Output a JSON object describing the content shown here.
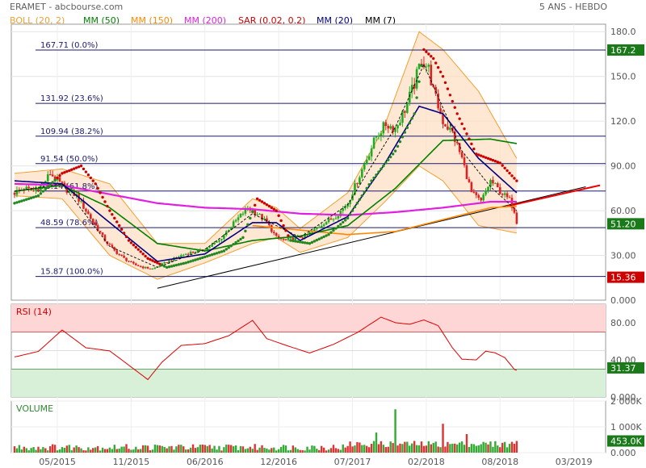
{
  "header": {
    "title": "ERAMET - abcbourse.com",
    "period": "5 ANS - HEBDO"
  },
  "legend": [
    {
      "label": "BOLL (20, 2)",
      "color": "#f0a030"
    },
    {
      "label": "MM (50)",
      "color": "#008000"
    },
    {
      "label": "MM (150)",
      "color": "#ff8800"
    },
    {
      "label": "MM (200)",
      "color": "#e020e0"
    },
    {
      "label": "SAR (0.02, 0.2)",
      "color": "#cc0000"
    },
    {
      "label": "MM (20)",
      "color": "#000080"
    },
    {
      "label": "MM (7)",
      "color": "#000000"
    }
  ],
  "chart_data": [
    {
      "type": "candlestick",
      "title": "",
      "ylim": [
        0,
        185
      ],
      "y_ticks": [
        "180.0",
        "150.0",
        "120.0",
        "90.00",
        "60.00",
        "30.00",
        "0.000"
      ],
      "x_ticks": [
        "05/2015",
        "11/2015",
        "06/2016",
        "12/2016",
        "07/2017",
        "02/2018",
        "08/2018",
        "03/2019"
      ],
      "last_close": 51.2,
      "last_close_label": "51.20",
      "high_label": "167.2",
      "low_label": "15.36",
      "fibonacci": [
        {
          "label": "167.71  (0.0%)",
          "value": 167.71
        },
        {
          "label": "131.92  (23.6%)",
          "value": 131.92
        },
        {
          "label": "109.94  (38.2%)",
          "value": 109.94
        },
        {
          "label": "91.54  (50.0%)",
          "value": 91.54
        },
        {
          "label": "73.14  (61.8%)",
          "value": 73.14
        },
        {
          "label": "48.59  (78.6%)",
          "value": 48.59
        },
        {
          "label": "15.87  (100.0%)",
          "value": 15.87
        }
      ],
      "price_anchors": [
        [
          0,
          72
        ],
        [
          4,
          75
        ],
        [
          8,
          73
        ],
        [
          12,
          78
        ],
        [
          15,
          85
        ],
        [
          18,
          80
        ],
        [
          22,
          74
        ],
        [
          26,
          70
        ],
        [
          30,
          60
        ],
        [
          34,
          50
        ],
        [
          38,
          40
        ],
        [
          42,
          33
        ],
        [
          46,
          28
        ],
        [
          50,
          24
        ],
        [
          54,
          22
        ],
        [
          58,
          21
        ],
        [
          62,
          24
        ],
        [
          66,
          27
        ],
        [
          70,
          30
        ],
        [
          74,
          32
        ],
        [
          78,
          33
        ],
        [
          82,
          36
        ],
        [
          86,
          40
        ],
        [
          90,
          48
        ],
        [
          94,
          55
        ],
        [
          98,
          62
        ],
        [
          102,
          58
        ],
        [
          106,
          52
        ],
        [
          110,
          42
        ],
        [
          114,
          40
        ],
        [
          118,
          42
        ],
        [
          122,
          43
        ],
        [
          126,
          47
        ],
        [
          130,
          52
        ],
        [
          134,
          55
        ],
        [
          136,
          58
        ],
        [
          140,
          65
        ],
        [
          144,
          80
        ],
        [
          148,
          95
        ],
        [
          152,
          110
        ],
        [
          156,
          118
        ],
        [
          160,
          115
        ],
        [
          164,
          128
        ],
        [
          168,
          145
        ],
        [
          171,
          162
        ],
        [
          174,
          155
        ],
        [
          176,
          140
        ],
        [
          180,
          120
        ],
        [
          184,
          112
        ],
        [
          188,
          95
        ],
        [
          192,
          72
        ],
        [
          196,
          66
        ],
        [
          200,
          80
        ],
        [
          204,
          73
        ],
        [
          208,
          67
        ],
        [
          210,
          60
        ],
        [
          211,
          51
        ]
      ],
      "sar_anchors": [
        [
          0,
          65
        ],
        [
          10,
          70
        ],
        [
          20,
          85
        ],
        [
          28,
          90
        ],
        [
          34,
          78
        ],
        [
          40,
          60
        ],
        [
          48,
          40
        ],
        [
          56,
          28
        ],
        [
          64,
          22
        ],
        [
          72,
          25
        ],
        [
          80,
          29
        ],
        [
          88,
          33
        ],
        [
          96,
          42
        ],
        [
          102,
          68
        ],
        [
          110,
          60
        ],
        [
          116,
          40
        ],
        [
          124,
          38
        ],
        [
          132,
          44
        ],
        [
          140,
          55
        ],
        [
          150,
          80
        ],
        [
          160,
          100
        ],
        [
          168,
          125
        ],
        [
          172,
          168
        ],
        [
          176,
          162
        ],
        [
          180,
          150
        ],
        [
          186,
          125
        ],
        [
          194,
          98
        ],
        [
          204,
          92
        ],
        [
          211,
          80
        ]
      ],
      "ma7_anchors": [
        [
          0,
          73
        ],
        [
          20,
          78
        ],
        [
          40,
          36
        ],
        [
          60,
          22
        ],
        [
          80,
          34
        ],
        [
          100,
          58
        ],
        [
          120,
          42
        ],
        [
          140,
          64
        ],
        [
          160,
          116
        ],
        [
          172,
          158
        ],
        [
          188,
          100
        ],
        [
          200,
          76
        ],
        [
          211,
          60
        ]
      ],
      "ma20_anchors": [
        [
          0,
          80
        ],
        [
          20,
          78
        ],
        [
          40,
          52
        ],
        [
          60,
          26
        ],
        [
          80,
          31
        ],
        [
          100,
          52
        ],
        [
          110,
          52
        ],
        [
          120,
          40
        ],
        [
          140,
          56
        ],
        [
          155,
          90
        ],
        [
          170,
          130
        ],
        [
          180,
          125
        ],
        [
          195,
          95
        ],
        [
          211,
          72
        ]
      ],
      "ma50_anchors": [
        [
          0,
          73
        ],
        [
          20,
          77
        ],
        [
          40,
          62
        ],
        [
          60,
          38
        ],
        [
          80,
          33
        ],
        [
          100,
          40
        ],
        [
          120,
          43
        ],
        [
          140,
          50
        ],
        [
          160,
          75
        ],
        [
          180,
          107
        ],
        [
          200,
          108
        ],
        [
          211,
          105
        ]
      ],
      "ma150_anchors": [
        [
          100,
          50
        ],
        [
          120,
          47
        ],
        [
          140,
          44
        ],
        [
          160,
          46
        ],
        [
          180,
          54
        ],
        [
          200,
          62
        ],
        [
          211,
          63
        ]
      ],
      "ma200_anchors": [
        [
          0,
          78
        ],
        [
          20,
          77
        ],
        [
          40,
          71
        ],
        [
          60,
          65
        ],
        [
          80,
          62
        ],
        [
          100,
          61
        ],
        [
          120,
          58
        ],
        [
          140,
          57
        ],
        [
          160,
          59
        ],
        [
          180,
          62
        ],
        [
          200,
          66
        ],
        [
          211,
          66
        ]
      ],
      "boll_up_anchors": [
        [
          0,
          85
        ],
        [
          20,
          88
        ],
        [
          40,
          78
        ],
        [
          60,
          38
        ],
        [
          80,
          38
        ],
        [
          100,
          68
        ],
        [
          110,
          62
        ],
        [
          120,
          48
        ],
        [
          140,
          72
        ],
        [
          155,
          115
        ],
        [
          170,
          180
        ],
        [
          180,
          168
        ],
        [
          195,
          140
        ],
        [
          211,
          95
        ]
      ],
      "boll_lo_anchors": [
        [
          0,
          70
        ],
        [
          20,
          68
        ],
        [
          40,
          30
        ],
        [
          60,
          14
        ],
        [
          80,
          25
        ],
        [
          100,
          38
        ],
        [
          110,
          42
        ],
        [
          120,
          32
        ],
        [
          140,
          42
        ],
        [
          155,
          65
        ],
        [
          170,
          90
        ],
        [
          180,
          80
        ],
        [
          195,
          50
        ],
        [
          211,
          45
        ]
      ],
      "trendlines": [
        {
          "name": "support",
          "color": "#000000",
          "from": [
            60,
            8
          ],
          "to": [
            240,
            76
          ]
        },
        {
          "name": "support-projection",
          "color": "#ee0000",
          "from": [
            207,
            63
          ],
          "to": [
            246,
            77
          ]
        }
      ]
    },
    {
      "type": "line",
      "title": "RSI (14)",
      "ylim": [
        0,
        100
      ],
      "y_ticks": [
        "80.00",
        "40.00",
        "0.000"
      ],
      "overbought": 70,
      "oversold": 30,
      "last_value": 31.37,
      "last_value_label": "31.37",
      "rsi_anchors": [
        [
          0,
          45
        ],
        [
          10,
          52
        ],
        [
          20,
          70
        ],
        [
          30,
          54
        ],
        [
          40,
          48
        ],
        [
          50,
          28
        ],
        [
          56,
          20
        ],
        [
          62,
          35
        ],
        [
          70,
          55
        ],
        [
          80,
          60
        ],
        [
          90,
          68
        ],
        [
          100,
          82
        ],
        [
          106,
          62
        ],
        [
          114,
          55
        ],
        [
          124,
          46
        ],
        [
          134,
          58
        ],
        [
          144,
          72
        ],
        [
          154,
          88
        ],
        [
          160,
          80
        ],
        [
          166,
          76
        ],
        [
          172,
          85
        ],
        [
          178,
          78
        ],
        [
          184,
          52
        ],
        [
          188,
          40
        ],
        [
          194,
          38
        ],
        [
          198,
          49
        ],
        [
          202,
          45
        ],
        [
          206,
          40
        ],
        [
          210,
          32
        ],
        [
          211,
          31.37
        ]
      ]
    },
    {
      "type": "bar",
      "title": "VOLUME",
      "ylim": [
        0,
        2000
      ],
      "y_ticks": [
        "2 000K",
        "1 000K",
        "0.000"
      ],
      "last_value": 453,
      "last_value_label": "453.0K",
      "spikes": [
        {
          "week": 160,
          "value": 1680
        },
        {
          "week": 180,
          "value": 1120
        },
        {
          "week": 152,
          "value": 780
        },
        {
          "week": 190,
          "value": 720
        }
      ]
    }
  ]
}
